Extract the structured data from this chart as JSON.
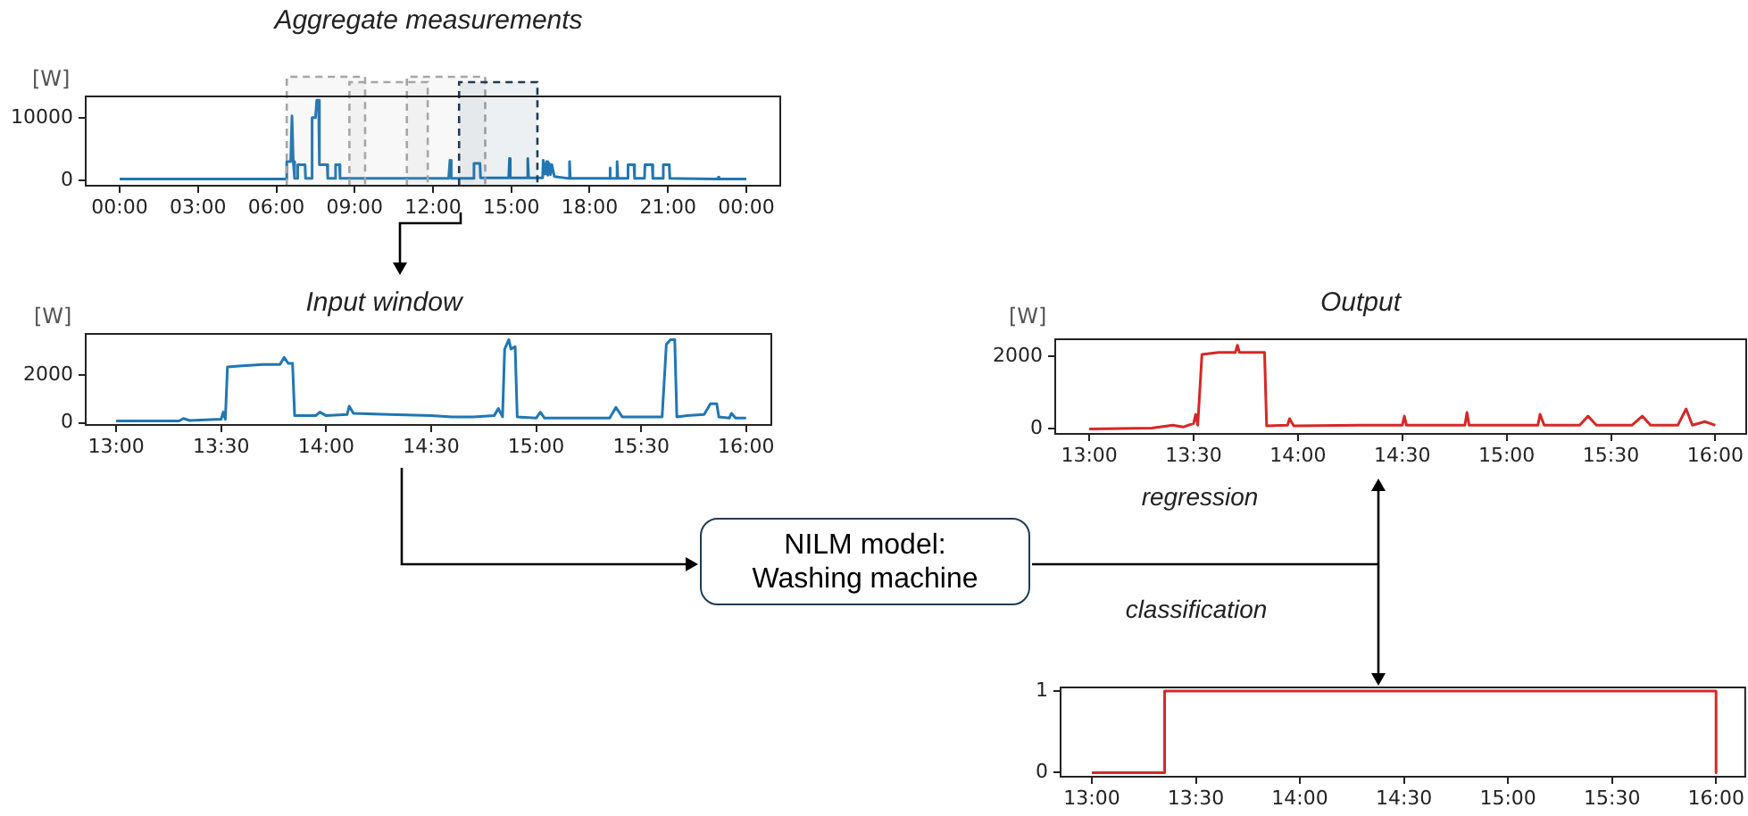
{
  "chart_data": [
    {
      "type": "line",
      "title": "Aggregate measurements",
      "ylabel": "[W]",
      "color": "#1f77b4",
      "x": [
        0,
        6.38,
        6.4,
        6.55,
        6.6,
        6.65,
        6.7,
        6.8,
        6.82,
        7.1,
        7.12,
        7.35,
        7.37,
        7.5,
        7.55,
        7.62,
        7.65,
        7.95,
        7.97,
        8.25,
        8.27,
        8.42,
        8.44,
        10,
        12.6,
        12.65,
        12.7,
        13.55,
        13.57,
        13.8,
        13.82,
        14.9,
        14.93,
        14.96,
        15.6,
        15.63,
        15.66,
        16.2,
        16.22,
        16.3,
        16.35,
        16.4,
        16.45,
        16.5,
        16.55,
        16.65,
        17.2,
        17.23,
        17.26,
        18.75,
        18.77,
        18.8,
        19.03,
        19.05,
        19.08,
        19.45,
        19.47,
        19.7,
        19.72,
        20.1,
        20.12,
        20.4,
        20.42,
        20.8,
        20.82,
        21.05,
        21.07,
        22.9,
        22.93,
        22.96,
        24
      ],
      "values": [
        200,
        200,
        3000,
        3000,
        10300,
        3000,
        300,
        300,
        2500,
        2500,
        300,
        300,
        10000,
        10000,
        12800,
        12800,
        2500,
        2500,
        300,
        300,
        2500,
        2500,
        300,
        300,
        300,
        3200,
        300,
        300,
        2700,
        2700,
        400,
        400,
        3500,
        400,
        400,
        3500,
        400,
        400,
        3200,
        1000,
        3000,
        800,
        2700,
        900,
        2500,
        600,
        300,
        3000,
        300,
        300,
        2000,
        300,
        300,
        3000,
        300,
        300,
        2500,
        2500,
        300,
        300,
        2500,
        2500,
        300,
        300,
        2500,
        2500,
        300,
        200,
        500,
        200,
        200
      ],
      "xlim": [
        -1.3,
        25.3
      ],
      "ylim": [
        -860,
        13400
      ],
      "yticks": [
        0,
        10000
      ],
      "xticks": [
        {
          "value": 0,
          "label": "00:00"
        },
        {
          "value": 3,
          "label": "03:00"
        },
        {
          "value": 6,
          "label": "06:00"
        },
        {
          "value": 9,
          "label": "09:00"
        },
        {
          "value": 12,
          "label": "12:00"
        },
        {
          "value": 15,
          "label": "15:00"
        },
        {
          "value": 18,
          "label": "18:00"
        },
        {
          "value": 21,
          "label": "21:00"
        },
        {
          "value": 24,
          "label": "00:00"
        }
      ],
      "bands": [
        {
          "axis": "x",
          "from": 6.4,
          "to": 9.4,
          "color": "#a6a6a6"
        },
        {
          "axis": "x",
          "from": 8.8,
          "to": 11.8,
          "color": "#a6a6a6"
        },
        {
          "axis": "x",
          "from": 11.0,
          "to": 14.0,
          "color": "#a6a6a6"
        },
        {
          "axis": "x",
          "from": 13.0,
          "to": 16.0,
          "color": "#1f3b57"
        }
      ]
    },
    {
      "type": "line",
      "title": "Input window",
      "ylabel": "[W]",
      "color": "#1f77b4",
      "x": [
        13,
        13.3,
        13.32,
        13.35,
        13.5,
        13.51,
        13.52,
        13.53,
        13.6,
        13.7,
        13.78,
        13.8,
        13.82,
        13.84,
        13.85,
        13.95,
        13.97,
        14.0,
        14.1,
        14.11,
        14.13,
        14.3,
        14.5,
        14.6,
        14.7,
        14.8,
        14.82,
        14.84,
        14.85,
        14.87,
        14.88,
        14.9,
        14.91,
        15.0,
        15.02,
        15.04,
        15.35,
        15.38,
        15.41,
        15.5,
        15.6,
        15.62,
        15.64,
        15.66,
        15.67,
        15.72,
        15.8,
        15.83,
        15.86,
        15.87,
        15.92,
        15.93,
        15.95,
        16
      ],
      "values": [
        80,
        80,
        180,
        100,
        150,
        450,
        150,
        2350,
        2400,
        2450,
        2450,
        2750,
        2500,
        2500,
        300,
        300,
        450,
        300,
        350,
        700,
        400,
        350,
        300,
        250,
        250,
        300,
        600,
        250,
        3100,
        3500,
        3100,
        3200,
        250,
        200,
        450,
        200,
        200,
        650,
        250,
        250,
        250,
        3300,
        3500,
        3500,
        250,
        300,
        350,
        800,
        800,
        250,
        200,
        400,
        200,
        200
      ],
      "xlim": [
        12.855,
        16.12
      ],
      "ylim": [
        -90,
        3740
      ],
      "yticks": [
        0,
        2000
      ],
      "xticks": [
        {
          "value": 13,
          "label": "13:00"
        },
        {
          "value": 13.5,
          "label": "13:30"
        },
        {
          "value": 14,
          "label": "14:00"
        },
        {
          "value": 14.5,
          "label": "14:30"
        },
        {
          "value": 15,
          "label": "15:00"
        },
        {
          "value": 15.5,
          "label": "15:30"
        },
        {
          "value": 16,
          "label": "16:00"
        }
      ]
    },
    {
      "type": "line",
      "title": "Output",
      "ylabel": "[W]",
      "color": "#d62728",
      "x": [
        13,
        13.3,
        13.4,
        13.45,
        13.5,
        13.51,
        13.52,
        13.54,
        13.62,
        13.7,
        13.71,
        13.72,
        13.84,
        13.85,
        13.95,
        13.96,
        13.98,
        14.3,
        14.5,
        14.51,
        14.52,
        14.8,
        14.81,
        14.82,
        15.15,
        15.16,
        15.18,
        15.35,
        15.39,
        15.43,
        15.6,
        15.65,
        15.69,
        15.82,
        15.86,
        15.89,
        15.95,
        16
      ],
      "values": [
        0,
        20,
        100,
        50,
        150,
        400,
        100,
        2050,
        2100,
        2100,
        2300,
        2100,
        2100,
        80,
        100,
        280,
        80,
        100,
        100,
        350,
        100,
        100,
        450,
        100,
        100,
        400,
        100,
        100,
        350,
        100,
        100,
        350,
        100,
        100,
        550,
        100,
        200,
        100
      ],
      "xlim": [
        12.837,
        16.148
      ],
      "ylim": [
        -138,
        2465
      ],
      "yticks": [
        0,
        2000
      ],
      "xticks": [
        {
          "value": 13,
          "label": "13:00"
        },
        {
          "value": 13.5,
          "label": "13:30"
        },
        {
          "value": 14,
          "label": "14:00"
        },
        {
          "value": 14.5,
          "label": "14:30"
        },
        {
          "value": 15,
          "label": "15:00"
        },
        {
          "value": 15.5,
          "label": "15:30"
        },
        {
          "value": 16,
          "label": "16:00"
        }
      ]
    },
    {
      "type": "line",
      "color": "#d62728",
      "x": [
        13,
        13.35,
        13.35,
        16,
        16
      ],
      "values": [
        0,
        0,
        1,
        1,
        0
      ],
      "xlim": [
        12.85,
        16.14
      ],
      "ylim": [
        -0.05,
        1.044
      ],
      "yticks": [
        0,
        1
      ],
      "xticks": [
        {
          "value": 13,
          "label": "13:00"
        },
        {
          "value": 13.5,
          "label": "13:30"
        },
        {
          "value": 14,
          "label": "14:00"
        },
        {
          "value": 14.5,
          "label": "14:30"
        },
        {
          "value": 15,
          "label": "15:00"
        },
        {
          "value": 15.5,
          "label": "15:30"
        },
        {
          "value": 16,
          "label": "16:00"
        }
      ]
    },
    {
      "type": "other",
      "annotations": [
        "NILM model:\nWashing machine",
        "regression",
        "classification"
      ]
    }
  ]
}
